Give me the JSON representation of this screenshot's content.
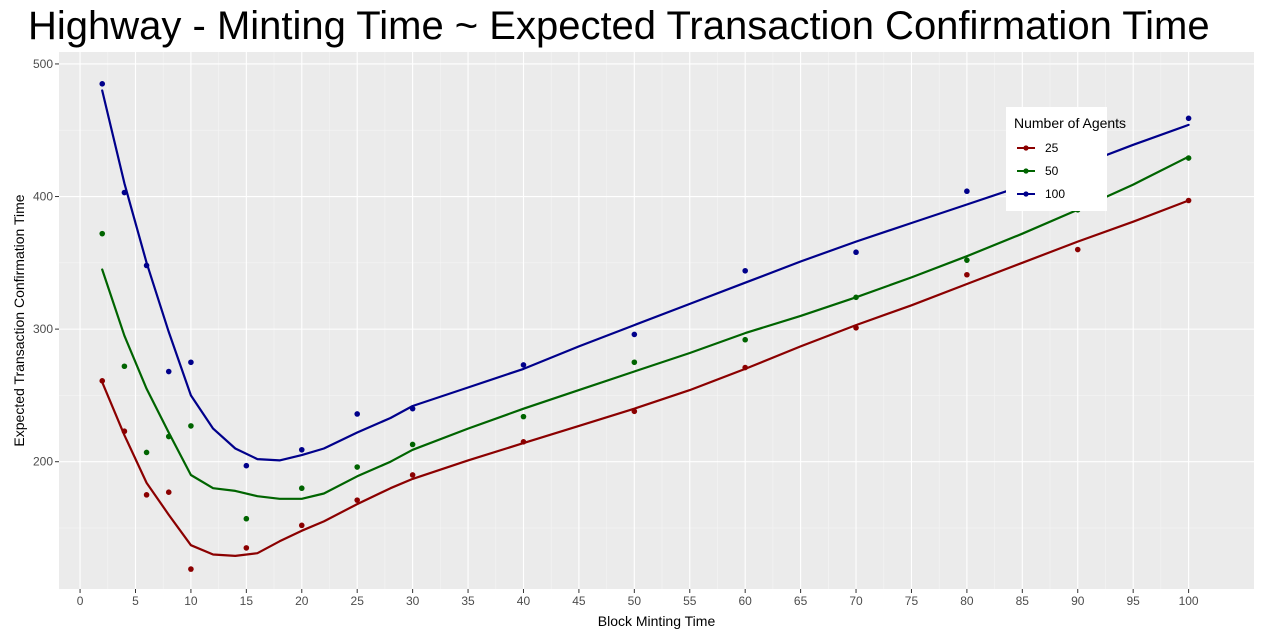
{
  "chart_data": {
    "type": "scatter",
    "title": "Highway - Minting Time ~ Expected Transaction Confirmation Time",
    "xlabel": "Block Minting Time",
    "ylabel": "Expected Transaction Confirmation Time",
    "xlim": [
      -1.9,
      105.9
    ],
    "ylim": [
      104,
      509
    ],
    "x_ticks": [
      0,
      5,
      10,
      15,
      20,
      25,
      30,
      35,
      40,
      45,
      50,
      55,
      60,
      65,
      70,
      75,
      80,
      85,
      90,
      95,
      100
    ],
    "y_ticks": [
      200,
      300,
      400,
      500
    ],
    "grid": true,
    "legend": {
      "title": "Number of Agents",
      "placement": "top-right"
    },
    "series": [
      {
        "name": "25",
        "color": "#8b0000",
        "points": [
          [
            2,
            261
          ],
          [
            4,
            223
          ],
          [
            6,
            175
          ],
          [
            8,
            177
          ],
          [
            10,
            119
          ],
          [
            15,
            135
          ],
          [
            20,
            152
          ],
          [
            25,
            171
          ],
          [
            30,
            190
          ],
          [
            40,
            215
          ],
          [
            50,
            238
          ],
          [
            60,
            271
          ],
          [
            70,
            301
          ],
          [
            80,
            341
          ],
          [
            90,
            360
          ],
          [
            100,
            397
          ]
        ],
        "smooth": [
          [
            2,
            260
          ],
          [
            4,
            220
          ],
          [
            6,
            184
          ],
          [
            8,
            160
          ],
          [
            10,
            137
          ],
          [
            12,
            130
          ],
          [
            14,
            129
          ],
          [
            16,
            131
          ],
          [
            18,
            140
          ],
          [
            20,
            148
          ],
          [
            22,
            155
          ],
          [
            25,
            168
          ],
          [
            28,
            180
          ],
          [
            30,
            187
          ],
          [
            35,
            201
          ],
          [
            40,
            214
          ],
          [
            45,
            227
          ],
          [
            50,
            240
          ],
          [
            55,
            254
          ],
          [
            60,
            270
          ],
          [
            65,
            287
          ],
          [
            70,
            303
          ],
          [
            75,
            318
          ],
          [
            80,
            334
          ],
          [
            85,
            350
          ],
          [
            90,
            366
          ],
          [
            95,
            381
          ],
          [
            100,
            397
          ]
        ]
      },
      {
        "name": "50",
        "color": "#006400",
        "points": [
          [
            2,
            372
          ],
          [
            4,
            272
          ],
          [
            6,
            207
          ],
          [
            8,
            219
          ],
          [
            10,
            227
          ],
          [
            15,
            157
          ],
          [
            20,
            180
          ],
          [
            25,
            196
          ],
          [
            30,
            213
          ],
          [
            40,
            234
          ],
          [
            50,
            275
          ],
          [
            60,
            292
          ],
          [
            70,
            324
          ],
          [
            80,
            352
          ],
          [
            90,
            390
          ],
          [
            100,
            429
          ]
        ],
        "smooth": [
          [
            2,
            345
          ],
          [
            4,
            295
          ],
          [
            6,
            255
          ],
          [
            8,
            222
          ],
          [
            10,
            190
          ],
          [
            12,
            180
          ],
          [
            14,
            178
          ],
          [
            16,
            174
          ],
          [
            18,
            172
          ],
          [
            20,
            172
          ],
          [
            22,
            176
          ],
          [
            25,
            189
          ],
          [
            28,
            200
          ],
          [
            30,
            209
          ],
          [
            35,
            225
          ],
          [
            40,
            240
          ],
          [
            45,
            254
          ],
          [
            50,
            268
          ],
          [
            55,
            282
          ],
          [
            60,
            297
          ],
          [
            65,
            310
          ],
          [
            70,
            324
          ],
          [
            75,
            339
          ],
          [
            80,
            355
          ],
          [
            85,
            372
          ],
          [
            90,
            390
          ],
          [
            95,
            409
          ],
          [
            100,
            430
          ]
        ]
      },
      {
        "name": "100",
        "color": "#00008b",
        "points": [
          [
            2,
            485
          ],
          [
            4,
            403
          ],
          [
            6,
            348
          ],
          [
            8,
            268
          ],
          [
            10,
            275
          ],
          [
            15,
            197
          ],
          [
            20,
            209
          ],
          [
            25,
            236
          ],
          [
            30,
            240
          ],
          [
            40,
            273
          ],
          [
            50,
            296
          ],
          [
            60,
            344
          ],
          [
            70,
            358
          ],
          [
            80,
            404
          ],
          [
            90,
            415
          ],
          [
            100,
            459
          ]
        ],
        "smooth": [
          [
            2,
            480
          ],
          [
            4,
            410
          ],
          [
            6,
            350
          ],
          [
            8,
            298
          ],
          [
            10,
            250
          ],
          [
            12,
            225
          ],
          [
            14,
            210
          ],
          [
            16,
            202
          ],
          [
            18,
            201
          ],
          [
            20,
            205
          ],
          [
            22,
            210
          ],
          [
            25,
            222
          ],
          [
            28,
            233
          ],
          [
            30,
            242
          ],
          [
            35,
            256
          ],
          [
            40,
            270
          ],
          [
            45,
            287
          ],
          [
            50,
            303
          ],
          [
            55,
            319
          ],
          [
            60,
            335
          ],
          [
            65,
            351
          ],
          [
            70,
            366
          ],
          [
            75,
            380
          ],
          [
            80,
            394
          ],
          [
            85,
            408
          ],
          [
            90,
            423
          ],
          [
            95,
            439
          ],
          [
            100,
            454
          ]
        ]
      }
    ]
  }
}
